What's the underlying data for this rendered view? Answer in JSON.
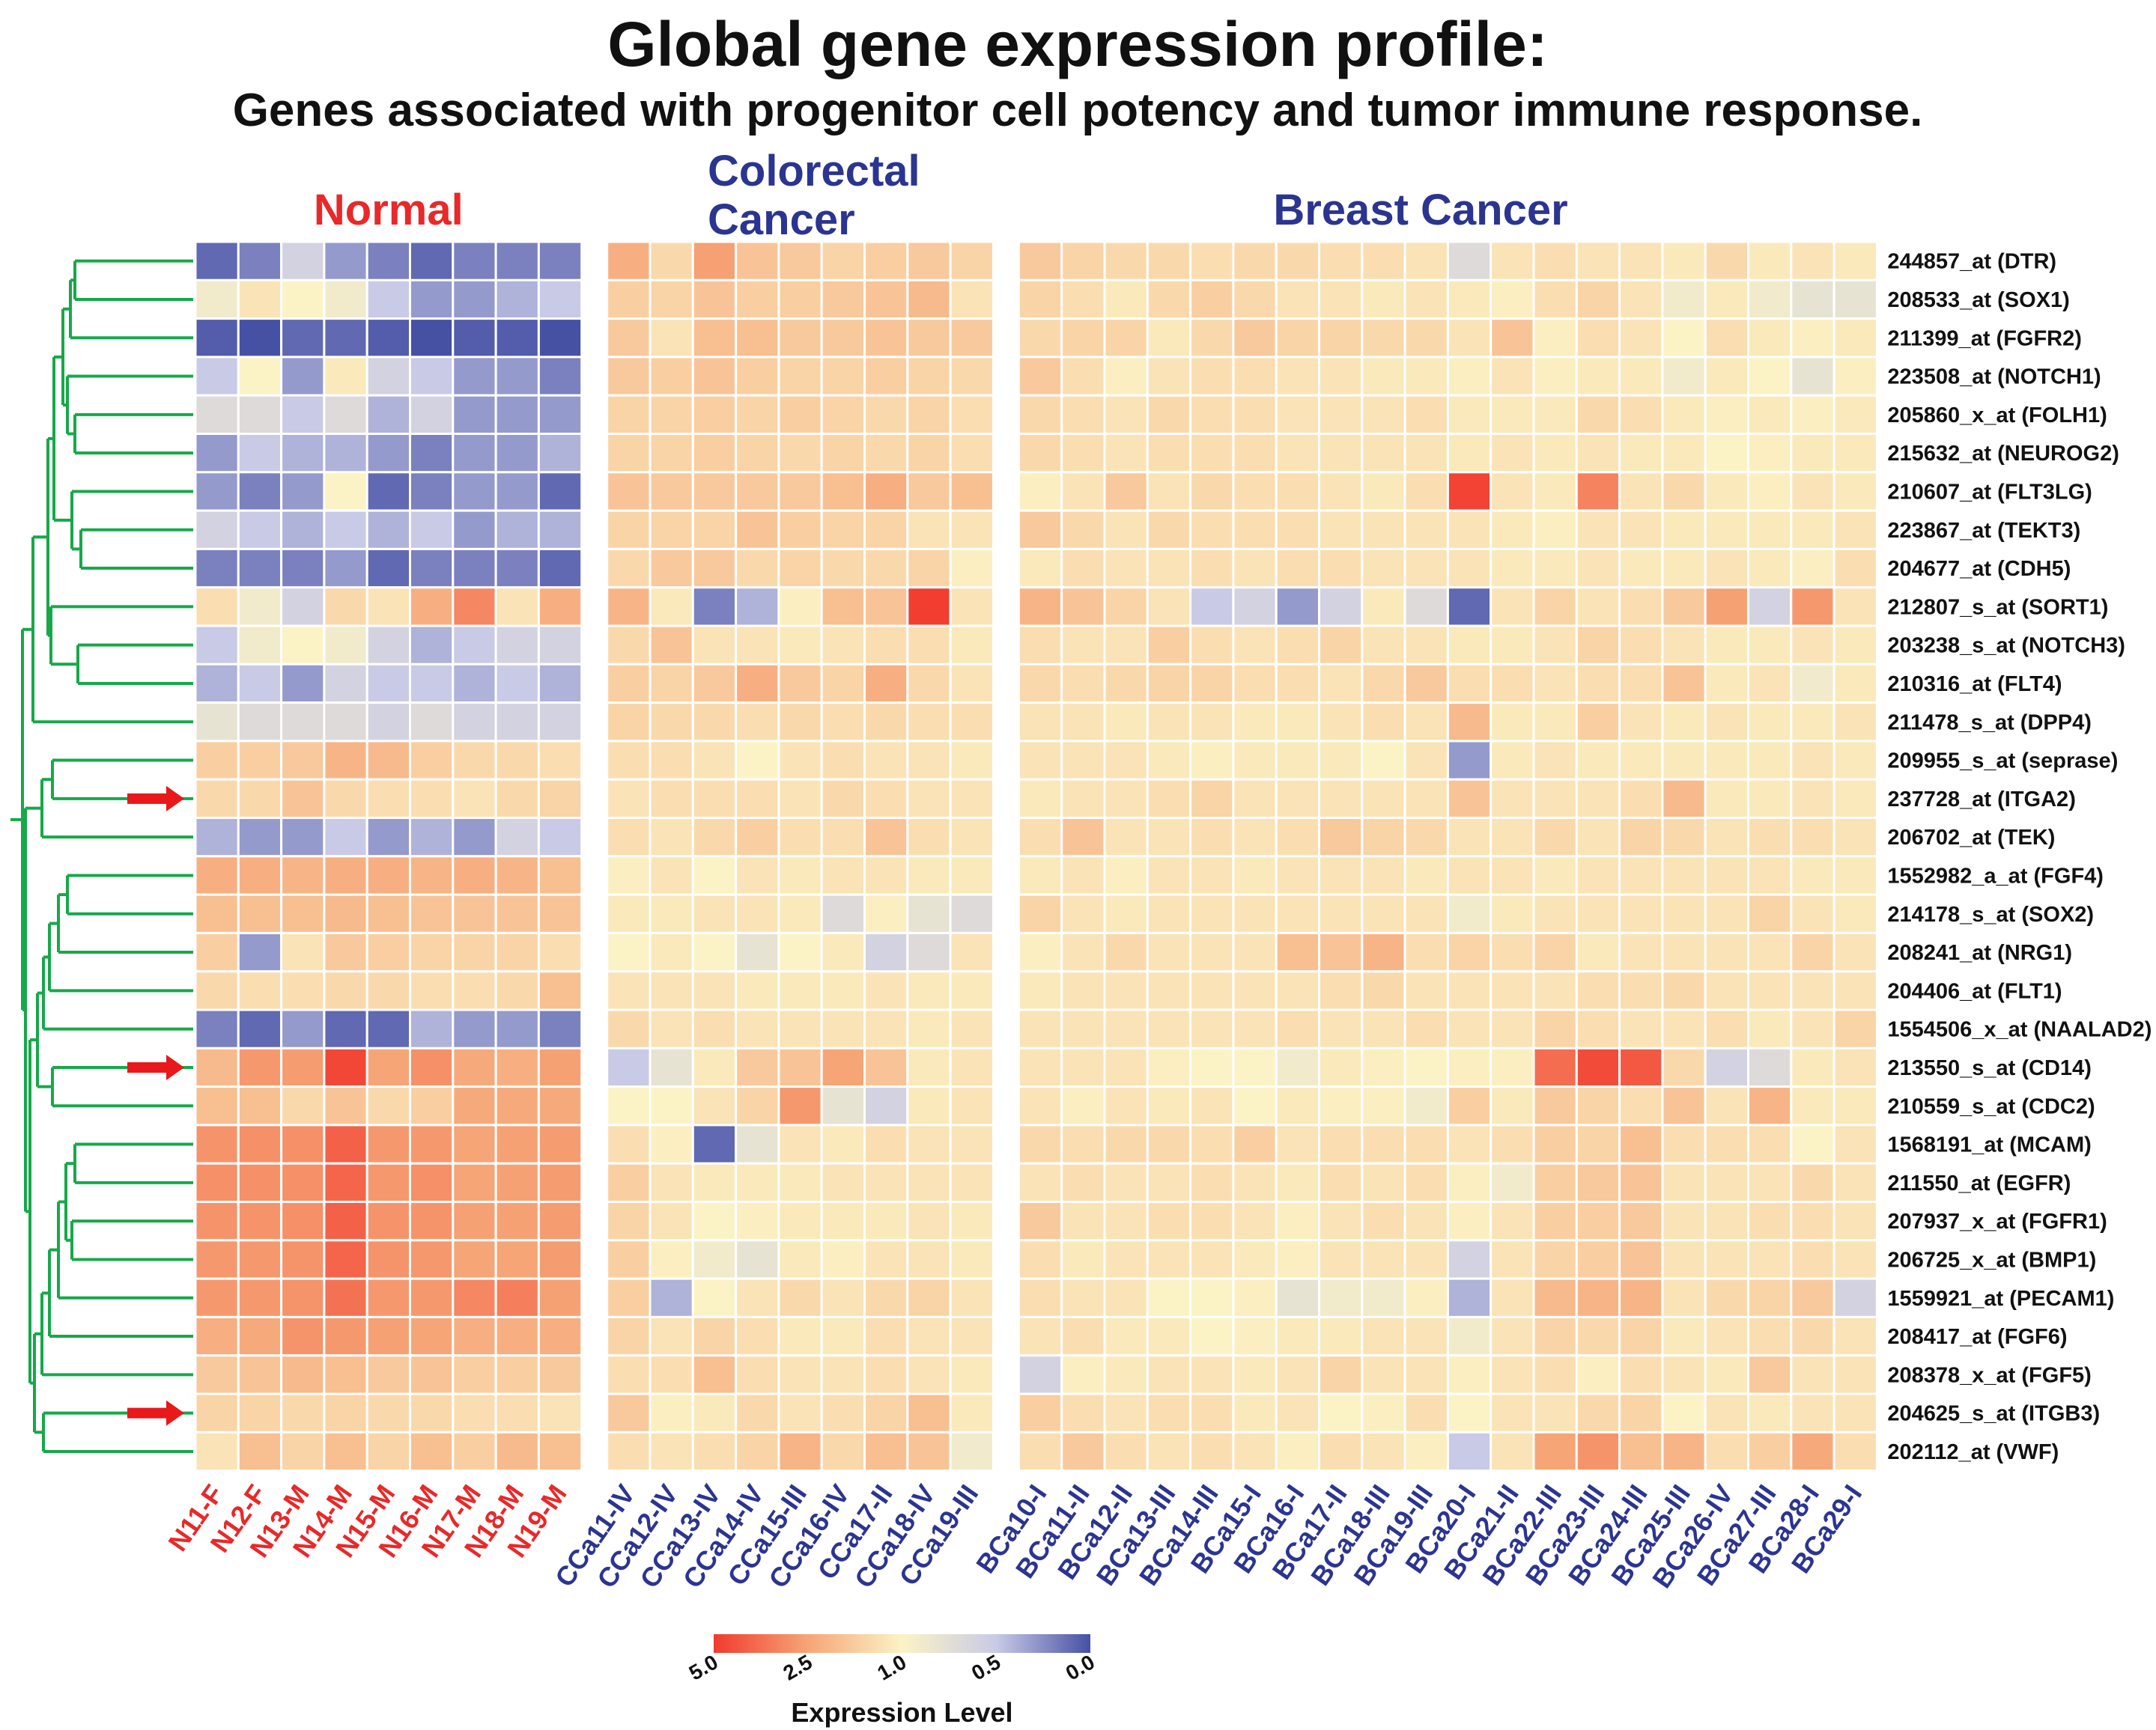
{
  "chart_data": {
    "type": "heatmap",
    "title": "Global gene expression profile:",
    "subtitle": "Genes associated with progenitor cell potency and tumor immune response.",
    "groups": [
      {
        "name": "Normal",
        "color": "#e8292a",
        "count": 9
      },
      {
        "name": "Colorectal Cancer",
        "color": "#2b3590",
        "count": 9
      },
      {
        "name": "Breast Cancer",
        "color": "#2b3590",
        "count": 20
      }
    ],
    "colorectal_label_lines": [
      "Colorectal",
      "Cancer"
    ],
    "samples": [
      "N11-F",
      "N12-F",
      "N13-M",
      "N14-M",
      "N15-M",
      "N16-M",
      "N17-M",
      "N18-M",
      "N19-M",
      "CCa11-IV",
      "CCa12-IV",
      "CCa13-IV",
      "CCa14-IV",
      "CCa15-III",
      "CCa16-IV",
      "CCa17-II",
      "CCa18-IV",
      "CCa19-III",
      "BCa10-I",
      "BCa11-II",
      "BCa12-II",
      "BCa13-III",
      "BCa14-III",
      "BCa15-I",
      "BCa16-I",
      "BCa17-II",
      "BCa18-III",
      "BCa19-III",
      "BCa20-I",
      "BCa21-II",
      "BCa22-III",
      "BCa23-III",
      "BCa24-III",
      "BCa25-III",
      "BCa26-IV",
      "BCa27-III",
      "BCa28-I",
      "BCa29-I"
    ],
    "genes": [
      "244857_at (DTR)",
      "208533_at (SOX1)",
      "211399_at (FGFR2)",
      "223508_at (NOTCH1)",
      "205860_x_at (FOLH1)",
      "215632_at (NEUROG2)",
      "210607_at (FLT3LG)",
      "223867_at (TEKT3)",
      "204677_at (CDH5)",
      "212807_s_at (SORT1)",
      "203238_s_at (NOTCH3)",
      "210316_at (FLT4)",
      "211478_s_at (DPP4)",
      "209955_s_at (seprase)",
      "237728_at (ITGA2)",
      "206702_at (TEK)",
      "1552982_a_at (FGF4)",
      "214178_s_at (SOX2)",
      "208241_at (NRG1)",
      "204406_at (FLT1)",
      "1554506_x_at (NAALAD2)",
      "213550_s_at (CD14)",
      "210559_s_at (CDC2)",
      "1568191_at (MCAM)",
      "211550_at (EGFR)",
      "207937_x_at (FGFR1)",
      "206725_x_at (BMP1)",
      "1559921_at (PECAM1)",
      "208417_at (FGF6)",
      "208378_x_at (FGF5)",
      "204625_s_at (ITGB3)",
      "202112_at (VWF)"
    ],
    "highlighted_genes": [
      "237728_at (ITGA2)",
      "213550_s_at (CD14)",
      "204625_s_at (ITGB3)"
    ],
    "values": [
      [
        0.1,
        0.2,
        0.6,
        0.3,
        0.2,
        0.1,
        0.2,
        0.2,
        0.2,
        2.3,
        1.5,
        2.6,
        1.9,
        1.8,
        1.6,
        1.7,
        1.8,
        1.6,
        1.8,
        1.6,
        1.5,
        1.5,
        1.4,
        1.5,
        1.5,
        1.4,
        1.4,
        1.3,
        0.7,
        1.3,
        1.4,
        1.3,
        1.3,
        1.2,
        1.5,
        1.2,
        1.3,
        1.2
      ],
      [
        0.9,
        1.3,
        1.0,
        0.9,
        0.5,
        0.3,
        0.3,
        0.4,
        0.5,
        1.7,
        1.6,
        1.9,
        1.7,
        1.7,
        1.8,
        1.9,
        2.1,
        1.3,
        1.6,
        1.4,
        1.2,
        1.5,
        1.7,
        1.5,
        1.3,
        1.3,
        1.2,
        1.3,
        1.2,
        1.1,
        1.4,
        1.6,
        1.3,
        0.9,
        1.2,
        0.9,
        0.8,
        0.8
      ],
      [
        0.05,
        0.0,
        0.1,
        0.1,
        0.05,
        0.0,
        0.05,
        0.05,
        0.0,
        1.8,
        1.3,
        2.0,
        2.0,
        1.8,
        1.8,
        1.9,
        1.8,
        1.8,
        1.5,
        1.6,
        1.6,
        1.2,
        1.5,
        1.8,
        1.6,
        1.6,
        1.5,
        1.5,
        1.3,
        1.9,
        1.1,
        1.4,
        1.3,
        1.0,
        1.4,
        1.2,
        1.1,
        1.2
      ],
      [
        0.5,
        1.0,
        0.3,
        1.2,
        0.6,
        0.5,
        0.3,
        0.3,
        0.2,
        1.8,
        1.7,
        1.9,
        1.7,
        1.6,
        1.6,
        1.7,
        1.6,
        1.5,
        1.8,
        1.4,
        1.1,
        1.3,
        1.4,
        1.4,
        1.3,
        1.3,
        1.2,
        1.2,
        1.1,
        1.3,
        1.1,
        1.2,
        1.2,
        0.9,
        1.2,
        1.0,
        0.8,
        1.1
      ],
      [
        0.7,
        0.7,
        0.5,
        0.7,
        0.4,
        0.6,
        0.3,
        0.3,
        0.3,
        1.6,
        1.6,
        1.7,
        1.6,
        1.7,
        1.6,
        1.5,
        1.6,
        1.4,
        1.5,
        1.4,
        1.3,
        1.5,
        1.4,
        1.4,
        1.3,
        1.3,
        1.3,
        1.4,
        1.2,
        1.2,
        1.2,
        1.5,
        1.4,
        1.2,
        1.1,
        1.2,
        1.1,
        1.2
      ],
      [
        0.3,
        0.5,
        0.4,
        0.4,
        0.3,
        0.2,
        0.3,
        0.3,
        0.4,
        1.6,
        1.6,
        1.7,
        1.6,
        1.5,
        1.6,
        1.5,
        1.6,
        1.4,
        1.5,
        1.4,
        1.3,
        1.4,
        1.4,
        1.4,
        1.3,
        1.3,
        1.3,
        1.3,
        1.2,
        1.3,
        1.2,
        1.3,
        1.2,
        1.2,
        1.0,
        1.1,
        1.2,
        1.2
      ],
      [
        0.3,
        0.2,
        0.3,
        1.0,
        0.1,
        0.2,
        0.3,
        0.3,
        0.1,
        1.9,
        1.8,
        1.8,
        1.8,
        1.8,
        2.0,
        2.3,
        1.8,
        2.0,
        1.1,
        1.3,
        1.8,
        1.3,
        1.5,
        1.4,
        1.4,
        1.3,
        1.2,
        1.4,
        4.8,
        1.3,
        1.2,
        3.3,
        1.3,
        1.5,
        1.2,
        1.1,
        1.3,
        1.2
      ],
      [
        0.6,
        0.5,
        0.4,
        0.5,
        0.4,
        0.5,
        0.3,
        0.4,
        0.4,
        1.6,
        1.6,
        1.6,
        1.9,
        1.7,
        1.6,
        1.6,
        1.3,
        1.3,
        1.8,
        1.5,
        1.3,
        1.5,
        1.4,
        1.4,
        1.4,
        1.3,
        1.3,
        1.3,
        1.3,
        1.2,
        1.1,
        1.3,
        1.3,
        1.2,
        1.2,
        1.2,
        1.2,
        1.3
      ],
      [
        0.2,
        0.2,
        0.2,
        0.3,
        0.1,
        0.2,
        0.2,
        0.2,
        0.1,
        1.5,
        1.8,
        1.8,
        1.5,
        1.6,
        1.5,
        1.5,
        1.6,
        1.1,
        1.2,
        1.4,
        1.3,
        1.3,
        1.4,
        1.3,
        1.4,
        1.4,
        1.3,
        1.3,
        1.3,
        1.2,
        1.2,
        1.3,
        1.2,
        1.2,
        1.3,
        1.2,
        1.1,
        1.4
      ],
      [
        1.4,
        0.9,
        0.6,
        1.5,
        1.3,
        2.3,
        3.2,
        1.3,
        2.3,
        2.2,
        1.2,
        0.2,
        0.4,
        1.1,
        2.0,
        1.9,
        4.9,
        1.3,
        2.2,
        1.9,
        1.6,
        1.3,
        0.5,
        0.6,
        0.3,
        0.6,
        1.2,
        0.7,
        0.1,
        1.3,
        1.6,
        1.3,
        1.4,
        1.8,
        2.6,
        0.6,
        2.8,
        1.3
      ],
      [
        0.5,
        0.9,
        1.0,
        0.9,
        0.6,
        0.4,
        0.5,
        0.6,
        0.6,
        1.5,
        1.9,
        1.3,
        1.3,
        1.2,
        1.3,
        1.4,
        1.4,
        1.2,
        1.4,
        1.3,
        1.3,
        1.7,
        1.4,
        1.3,
        1.4,
        1.6,
        1.3,
        1.3,
        1.2,
        1.2,
        1.3,
        1.6,
        1.4,
        1.3,
        1.2,
        1.2,
        1.3,
        1.2
      ],
      [
        0.4,
        0.5,
        0.3,
        0.6,
        0.5,
        0.5,
        0.4,
        0.5,
        0.4,
        1.7,
        1.6,
        1.8,
        2.3,
        1.8,
        1.6,
        2.3,
        1.5,
        1.3,
        1.5,
        1.4,
        1.5,
        1.6,
        1.6,
        1.4,
        1.4,
        1.3,
        1.5,
        1.8,
        1.4,
        1.4,
        1.3,
        1.4,
        1.4,
        1.9,
        1.2,
        1.3,
        0.9,
        1.2
      ],
      [
        0.8,
        0.7,
        0.7,
        0.7,
        0.6,
        0.7,
        0.6,
        0.6,
        0.6,
        1.6,
        1.5,
        1.5,
        1.4,
        1.5,
        1.4,
        1.5,
        1.4,
        1.4,
        1.3,
        1.3,
        1.2,
        1.3,
        1.3,
        1.2,
        1.2,
        1.3,
        1.4,
        1.3,
        2.1,
        1.2,
        1.2,
        1.7,
        1.3,
        1.2,
        1.3,
        1.2,
        1.2,
        1.3
      ],
      [
        1.7,
        1.7,
        1.8,
        2.2,
        2.1,
        1.7,
        1.5,
        1.5,
        1.4,
        1.4,
        1.4,
        1.3,
        1.0,
        1.3,
        1.4,
        1.3,
        1.3,
        1.2,
        1.3,
        1.3,
        1.3,
        1.2,
        1.1,
        1.2,
        1.2,
        1.2,
        1.0,
        1.3,
        0.3,
        1.2,
        1.3,
        1.2,
        1.2,
        1.2,
        1.2,
        1.2,
        1.3,
        1.2
      ],
      [
        1.5,
        1.5,
        1.9,
        1.5,
        1.4,
        1.4,
        1.3,
        1.5,
        1.6,
        1.3,
        1.4,
        1.4,
        1.4,
        1.3,
        1.5,
        1.4,
        1.3,
        1.3,
        1.2,
        1.3,
        1.3,
        1.4,
        1.6,
        1.3,
        1.3,
        1.3,
        1.3,
        1.3,
        1.9,
        1.3,
        1.3,
        1.3,
        1.4,
        2.1,
        1.2,
        1.2,
        1.3,
        1.2
      ],
      [
        0.4,
        0.3,
        0.3,
        0.5,
        0.3,
        0.4,
        0.3,
        0.6,
        0.5,
        1.4,
        1.3,
        1.5,
        1.7,
        1.4,
        1.4,
        1.9,
        1.4,
        1.3,
        1.4,
        1.9,
        1.3,
        1.3,
        1.4,
        1.3,
        1.4,
        1.8,
        1.6,
        1.5,
        1.3,
        1.3,
        1.5,
        1.3,
        1.6,
        1.5,
        1.3,
        1.4,
        1.4,
        1.3
      ],
      [
        2.3,
        2.3,
        2.2,
        2.3,
        2.3,
        2.2,
        2.3,
        2.2,
        2.0,
        1.1,
        1.3,
        1.0,
        1.3,
        1.2,
        1.3,
        1.3,
        1.2,
        1.2,
        1.2,
        1.3,
        1.1,
        1.3,
        1.3,
        1.2,
        1.3,
        1.3,
        1.3,
        1.2,
        1.3,
        1.3,
        1.2,
        1.3,
        1.3,
        1.3,
        1.3,
        1.3,
        1.2,
        1.2
      ],
      [
        2.0,
        2.0,
        2.0,
        2.1,
        2.0,
        1.9,
        1.9,
        1.9,
        1.9,
        1.2,
        1.2,
        1.3,
        1.3,
        1.2,
        0.7,
        1.1,
        0.8,
        0.7,
        1.6,
        1.3,
        1.2,
        1.3,
        1.3,
        1.3,
        1.3,
        1.3,
        1.3,
        1.3,
        0.9,
        1.2,
        1.3,
        1.3,
        1.3,
        1.3,
        1.3,
        1.6,
        1.3,
        1.2
      ],
      [
        1.7,
        0.3,
        1.3,
        1.8,
        1.7,
        1.6,
        1.6,
        1.6,
        1.4,
        1.0,
        1.2,
        1.0,
        0.8,
        1.0,
        1.2,
        0.6,
        0.7,
        1.3,
        1.1,
        1.3,
        1.5,
        1.3,
        1.3,
        1.3,
        2.0,
        1.9,
        2.2,
        1.4,
        1.6,
        1.4,
        1.6,
        1.2,
        1.3,
        1.3,
        1.3,
        1.3,
        1.6,
        1.3
      ],
      [
        1.5,
        1.4,
        1.4,
        1.5,
        1.5,
        1.4,
        1.4,
        1.5,
        2.0,
        1.3,
        1.3,
        1.3,
        1.2,
        1.2,
        1.2,
        1.3,
        1.2,
        1.2,
        1.2,
        1.3,
        1.3,
        1.3,
        1.3,
        1.3,
        1.3,
        1.4,
        1.5,
        1.3,
        1.3,
        1.3,
        1.3,
        1.4,
        1.4,
        1.5,
        1.3,
        1.3,
        1.3,
        1.3
      ],
      [
        0.2,
        0.1,
        0.3,
        0.1,
        0.1,
        0.4,
        0.3,
        0.3,
        0.2,
        1.5,
        1.3,
        1.4,
        1.3,
        1.3,
        1.3,
        1.3,
        1.2,
        1.3,
        1.3,
        1.3,
        1.3,
        1.3,
        1.3,
        1.3,
        1.4,
        1.3,
        1.3,
        1.4,
        1.3,
        1.3,
        1.6,
        1.4,
        1.3,
        1.3,
        1.4,
        1.2,
        1.3,
        1.6
      ],
      [
        2.1,
        2.8,
        2.7,
        4.7,
        2.5,
        3.0,
        2.4,
        2.3,
        2.6,
        0.5,
        0.8,
        1.2,
        1.8,
        1.9,
        2.5,
        1.9,
        1.2,
        1.3,
        1.3,
        1.3,
        1.3,
        1.1,
        1.0,
        1.0,
        0.9,
        1.2,
        1.1,
        1.0,
        1.1,
        1.1,
        3.8,
        4.6,
        4.3,
        1.5,
        0.6,
        0.7,
        1.2,
        1.3
      ],
      [
        2.0,
        2.0,
        1.5,
        1.9,
        1.5,
        1.7,
        2.4,
        2.4,
        2.4,
        1.0,
        1.0,
        1.3,
        1.6,
        2.8,
        0.8,
        0.6,
        1.2,
        1.3,
        1.3,
        1.1,
        1.3,
        1.2,
        1.3,
        1.0,
        1.2,
        1.1,
        1.1,
        0.9,
        1.7,
        1.2,
        1.8,
        1.6,
        1.4,
        1.9,
        1.3,
        2.2,
        1.2,
        1.2
      ],
      [
        2.9,
        3.0,
        3.0,
        4.1,
        2.8,
        2.8,
        2.5,
        2.6,
        2.7,
        1.4,
        1.1,
        0.1,
        0.8,
        1.3,
        1.2,
        1.4,
        1.3,
        1.3,
        1.5,
        1.4,
        1.5,
        1.5,
        1.4,
        1.7,
        1.3,
        1.4,
        1.4,
        1.4,
        1.3,
        1.4,
        1.7,
        1.6,
        2.0,
        1.4,
        1.4,
        1.4,
        1.0,
        1.3
      ],
      [
        3.0,
        3.0,
        3.0,
        4.0,
        2.8,
        3.0,
        2.5,
        2.6,
        2.7,
        1.7,
        1.3,
        1.2,
        1.2,
        1.2,
        1.3,
        1.3,
        1.3,
        1.3,
        1.3,
        1.4,
        1.3,
        1.3,
        1.4,
        1.3,
        1.2,
        1.4,
        1.3,
        1.4,
        1.1,
        0.9,
        1.7,
        1.8,
        1.9,
        1.3,
        1.3,
        1.3,
        1.5,
        1.3
      ],
      [
        2.9,
        2.9,
        3.0,
        4.1,
        2.9,
        2.9,
        2.6,
        2.6,
        2.7,
        1.6,
        1.3,
        1.0,
        1.1,
        1.2,
        1.2,
        1.2,
        1.3,
        1.2,
        1.8,
        1.3,
        1.3,
        1.4,
        1.4,
        1.3,
        1.1,
        1.3,
        1.4,
        1.3,
        1.1,
        1.3,
        1.7,
        1.7,
        1.8,
        1.3,
        1.3,
        1.4,
        1.4,
        1.3
      ],
      [
        2.8,
        2.8,
        2.9,
        4.0,
        2.9,
        2.8,
        2.5,
        2.5,
        2.7,
        1.7,
        1.1,
        0.9,
        0.8,
        1.2,
        1.1,
        1.3,
        1.3,
        1.2,
        1.4,
        1.2,
        1.3,
        1.3,
        1.3,
        1.2,
        1.1,
        1.3,
        1.3,
        1.3,
        0.6,
        1.3,
        1.6,
        1.7,
        1.9,
        1.3,
        1.3,
        1.3,
        1.4,
        1.3
      ],
      [
        2.8,
        2.8,
        2.9,
        3.7,
        2.8,
        2.8,
        3.2,
        3.4,
        2.6,
        1.7,
        0.4,
        1.0,
        1.3,
        1.5,
        1.3,
        1.5,
        1.6,
        1.3,
        1.4,
        1.3,
        1.3,
        1.0,
        1.0,
        1.1,
        0.8,
        0.9,
        0.9,
        1.1,
        0.4,
        1.3,
        2.1,
        2.2,
        2.2,
        1.3,
        1.5,
        1.6,
        1.8,
        0.6
      ],
      [
        2.3,
        2.4,
        2.9,
        2.8,
        2.6,
        2.5,
        2.3,
        2.3,
        2.3,
        1.6,
        1.3,
        1.6,
        1.4,
        1.2,
        1.2,
        1.4,
        1.3,
        1.3,
        1.3,
        1.4,
        1.2,
        1.2,
        1.0,
        1.1,
        1.2,
        1.2,
        1.3,
        1.3,
        0.9,
        1.3,
        1.6,
        1.5,
        1.6,
        1.2,
        1.3,
        1.4,
        1.5,
        1.3
      ],
      [
        1.8,
        1.9,
        2.1,
        2.0,
        1.8,
        1.9,
        1.7,
        1.7,
        1.8,
        1.4,
        1.4,
        2.0,
        1.4,
        1.3,
        1.3,
        1.4,
        1.3,
        1.2,
        0.6,
        1.1,
        1.2,
        1.3,
        1.3,
        1.2,
        1.3,
        1.6,
        1.3,
        1.3,
        1.1,
        1.3,
        1.4,
        1.1,
        1.4,
        1.3,
        1.2,
        1.8,
        1.3,
        1.3
      ],
      [
        1.6,
        1.6,
        1.5,
        1.6,
        1.5,
        1.5,
        1.4,
        1.4,
        1.3,
        1.8,
        1.1,
        1.2,
        1.5,
        1.3,
        1.4,
        1.6,
        2.0,
        1.2,
        1.7,
        1.4,
        1.3,
        1.4,
        1.4,
        1.2,
        1.3,
        1.0,
        1.1,
        1.4,
        1.0,
        1.3,
        1.3,
        1.5,
        1.6,
        1.0,
        1.3,
        1.2,
        1.3,
        1.3
      ],
      [
        1.3,
        2.0,
        1.6,
        2.0,
        1.6,
        2.0,
        1.7,
        2.1,
        2.0,
        1.4,
        1.3,
        1.4,
        1.6,
        2.2,
        1.5,
        2.0,
        1.9,
        0.9,
        1.4,
        1.8,
        1.4,
        1.3,
        1.4,
        1.3,
        1.1,
        1.4,
        1.3,
        1.1,
        0.5,
        1.3,
        2.5,
        2.9,
        2.0,
        2.2,
        1.4,
        1.7,
        2.4,
        1.4
      ]
    ],
    "legend": {
      "title": "Expression Level",
      "ticks": [
        "5.0",
        "2.5",
        "1.0",
        "0.5",
        "0.0"
      ],
      "stops": [
        5.0,
        2.5,
        1.0,
        0.5,
        0.0
      ],
      "colors": [
        "#f23a2e",
        "#f6a577",
        "#fbf3c6",
        "#c9cae6",
        "#4651a4"
      ]
    }
  }
}
